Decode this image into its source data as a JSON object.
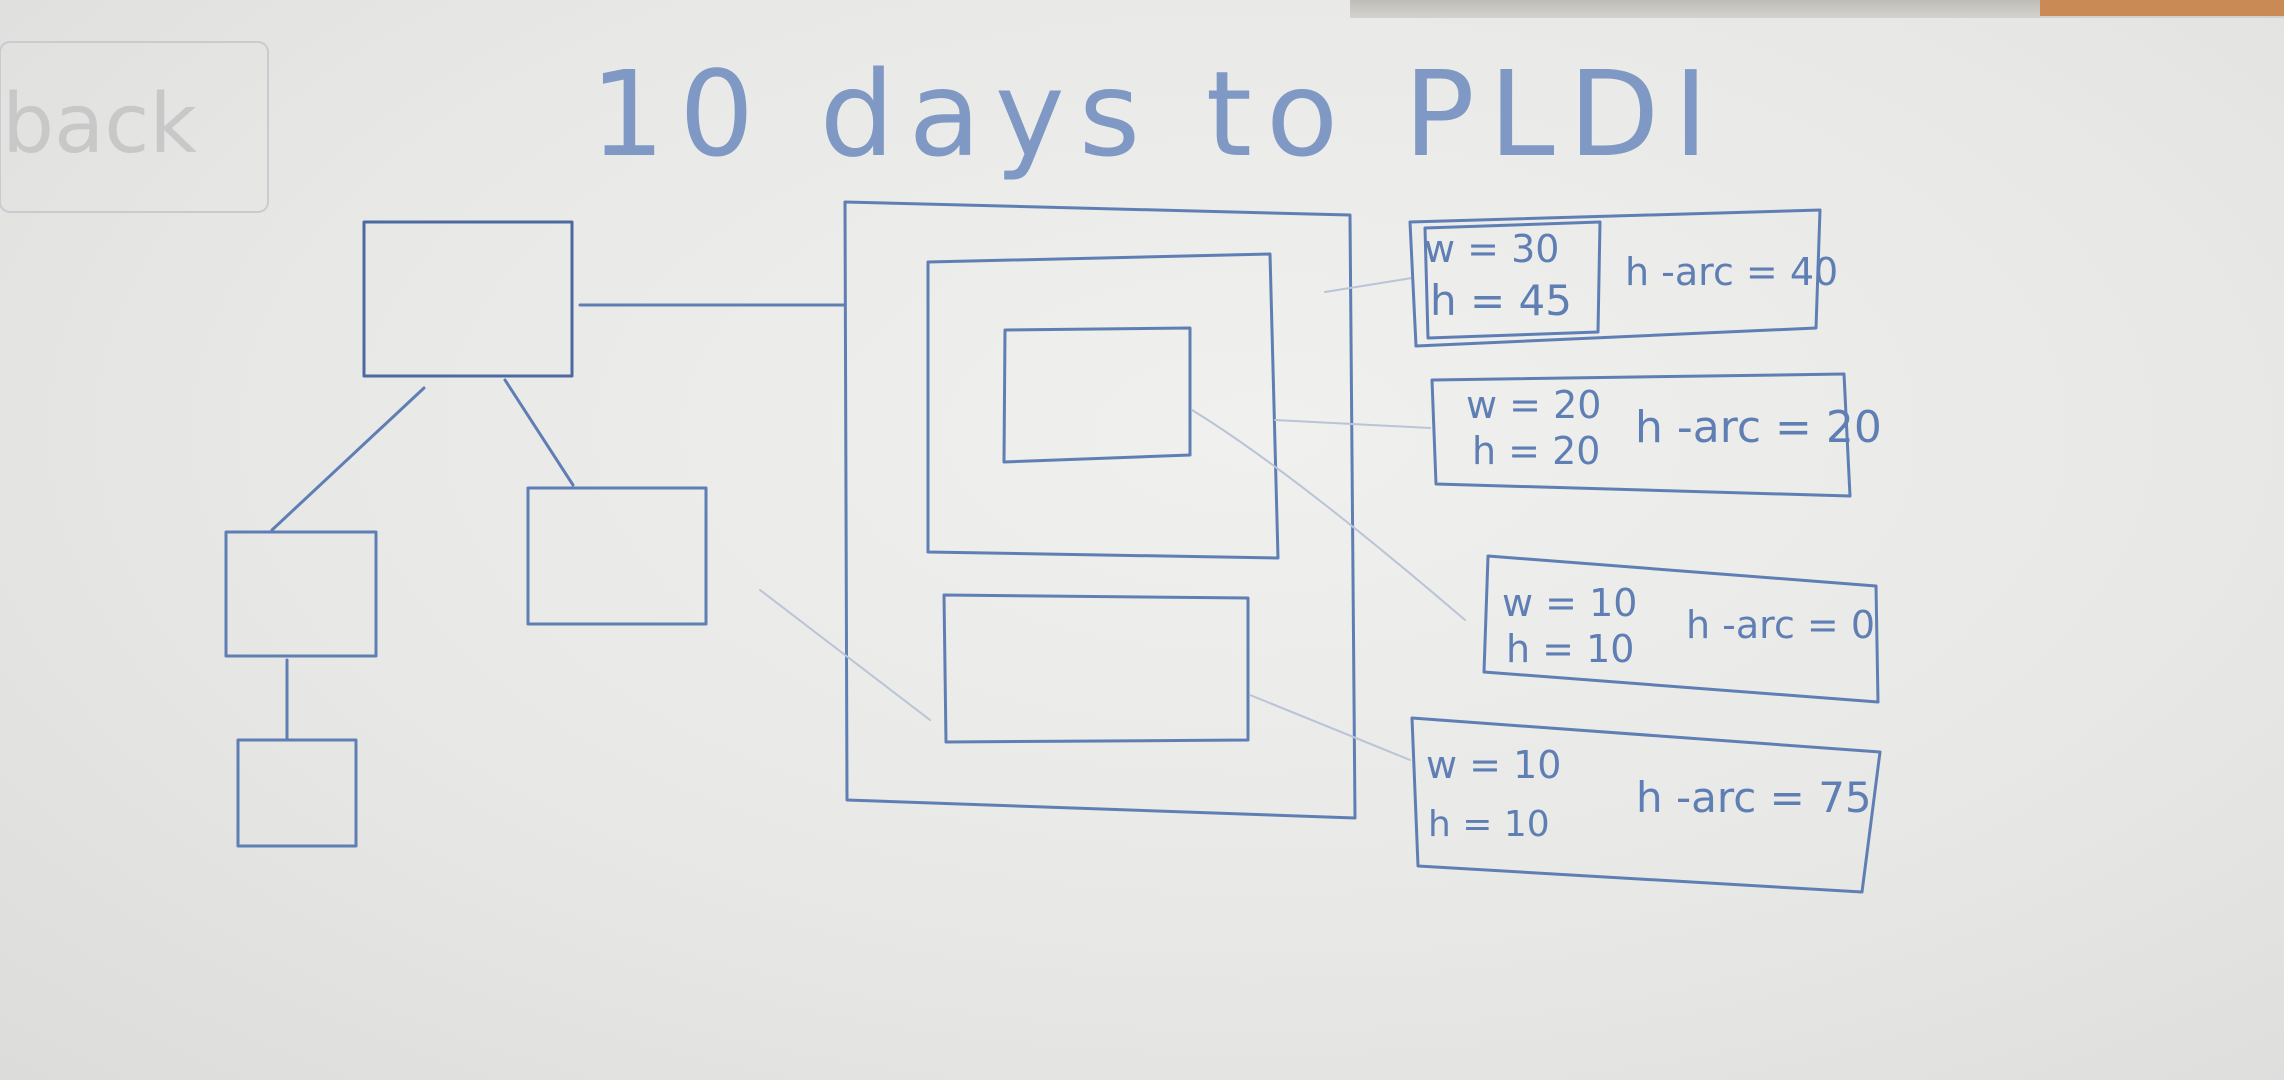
{
  "whiteboard": {
    "title": "10 days to PLDI",
    "ghost_text": "back",
    "info_boxes": [
      {
        "w_label": "w = 30",
        "h_label": "h = 45",
        "arc_label": "h -arc = 40"
      },
      {
        "w_label": "w = 20",
        "h_label": "h = 20",
        "arc_label": "h -arc = 20"
      },
      {
        "w_label": "w = 10",
        "h_label": "h = 10",
        "arc_label": "h -arc = 0"
      },
      {
        "w_label": "w = 10",
        "h_label": "h = 10",
        "arc_label": "h -arc = 75"
      }
    ]
  },
  "colors": {
    "ink": "#5f7fb4",
    "board": "#ececea"
  }
}
